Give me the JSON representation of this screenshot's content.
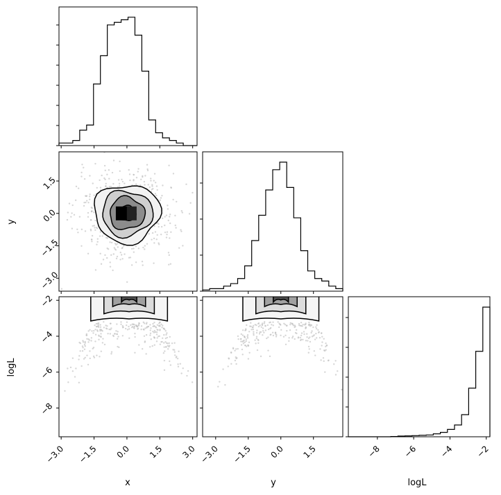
{
  "chart_data": {
    "type": "corner",
    "parameters": [
      "x",
      "y",
      "logL"
    ],
    "labels": {
      "x": "x",
      "y": "y",
      "logL": "logL"
    },
    "ranges": {
      "x": [
        -3.1,
        3.2
      ],
      "y": [
        -3.6,
        2.85
      ],
      "logL": [
        -9.6,
        -1.8
      ]
    },
    "ticks": {
      "x": {
        "values": [
          -3.0,
          -1.5,
          0.0,
          1.5,
          3.0
        ],
        "labels": [
          "−3.0",
          "−1.5",
          "0.0",
          "1.5",
          "3.0"
        ]
      },
      "y": {
        "values": [
          -3.0,
          -1.5,
          0.0,
          1.5
        ],
        "labels": [
          "−3.0",
          "−1.5",
          "0.0",
          "1.5"
        ]
      },
      "logL": {
        "values": [
          -8,
          -6,
          -4,
          -2
        ],
        "labels": [
          "−8",
          "−6",
          "−4",
          "−2"
        ]
      }
    },
    "histograms": {
      "x": {
        "edges": [
          -3.1,
          -2.785,
          -2.47,
          -2.155,
          -1.84,
          -1.525,
          -1.21,
          -0.895,
          -0.58,
          -0.265,
          0.05,
          0.365,
          0.68,
          0.995,
          1.31,
          1.625,
          1.94,
          2.255,
          2.57,
          2.885,
          3.2
        ],
        "counts": [
          1,
          1,
          2,
          6,
          8,
          24,
          35,
          47,
          48,
          49,
          50,
          43,
          29,
          10,
          5,
          3,
          2,
          1,
          0,
          0
        ]
      },
      "y": {
        "edges": [
          -3.6,
          -3.2775,
          -2.955,
          -2.6325,
          -2.31,
          -1.9875,
          -1.665,
          -1.3425,
          -1.02,
          -0.6975,
          -0.375,
          -0.0525,
          0.27,
          0.5925,
          0.915,
          1.2375,
          1.56,
          1.8825,
          2.205,
          2.5275,
          2.85
        ],
        "counts": [
          0.5,
          1,
          1,
          2,
          3,
          5,
          10,
          20,
          30,
          40,
          48,
          51,
          41,
          29,
          16,
          8,
          5,
          4,
          2,
          1
        ]
      },
      "logL": {
        "edges": [
          -9.6,
          -9.21,
          -8.82,
          -8.43,
          -8.04,
          -7.65,
          -7.26,
          -6.87,
          -6.48,
          -6.09,
          -5.7,
          -5.31,
          -4.92,
          -4.53,
          -4.14,
          -3.75,
          -3.36,
          -2.97,
          -2.58,
          -2.19,
          -1.8
        ],
        "counts": [
          0,
          0,
          0,
          0,
          0,
          0,
          0.2,
          0.5,
          0.6,
          0.8,
          1,
          1.2,
          2,
          3,
          5,
          8,
          15,
          33,
          58,
          88
        ]
      }
    },
    "contours_2d": {
      "y_vs_x": {
        "center": [
          0.0,
          0.0
        ],
        "levels": [
          {
            "rx": 0.4,
            "ry": 0.35
          },
          {
            "rx": 0.8,
            "ry": 0.75
          },
          {
            "rx": 1.15,
            "ry": 1.05
          },
          {
            "rx": 1.5,
            "ry": 1.35
          }
        ]
      },
      "logL_vs_x": {
        "center": 0.1,
        "peak": -2.0
      },
      "logL_vs_y": {
        "center": 0.0,
        "peak": -2.0
      }
    },
    "scatter_spread": {
      "x_sd": 1.1,
      "y_sd": 1.0
    }
  }
}
